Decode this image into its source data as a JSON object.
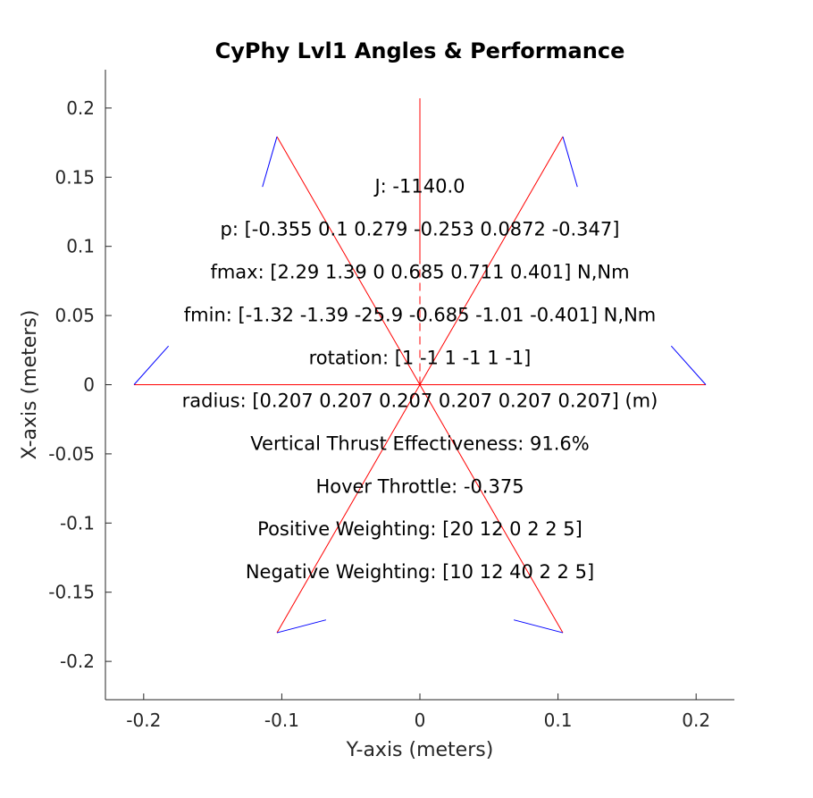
{
  "chart_data": {
    "type": "line",
    "title": "CyPhy Lvl1 Angles & Performance",
    "xlabel": "Y-axis (meters)",
    "ylabel": "X-axis (meters)",
    "xlim": [
      -0.2277,
      0.2277
    ],
    "ylim": [
      -0.2277,
      0.2277
    ],
    "xticks": [
      -0.2,
      -0.1,
      0,
      0.1,
      0.2
    ],
    "yticks": [
      0.2,
      0.15,
      0.1,
      0.05,
      0,
      -0.05,
      -0.1,
      -0.15,
      -0.2
    ],
    "grid": false,
    "colors": {
      "arms": "#ff0000",
      "thrust": "#0000ff",
      "axis": "#262626",
      "text": "#000000"
    },
    "arms": [
      {
        "from": [
          0,
          0
        ],
        "to": [
          0.207,
          0
        ]
      },
      {
        "from": [
          0,
          0
        ],
        "to": [
          0.1035,
          -0.1793
        ]
      },
      {
        "from": [
          0,
          0
        ],
        "to": [
          -0.1035,
          -0.1793
        ]
      },
      {
        "from": [
          0,
          0
        ],
        "to": [
          -0.207,
          0
        ]
      },
      {
        "from": [
          0,
          0
        ],
        "to": [
          -0.1035,
          0.1793
        ]
      },
      {
        "from": [
          0,
          0
        ],
        "to": [
          0.1035,
          0.1793
        ]
      }
    ],
    "vertical_line": {
      "x": 0,
      "solid_from": 0.09,
      "solid_to": 0.207,
      "dashed_from": 0,
      "dashed_to": 0.09
    },
    "thrust_vectors": [
      {
        "from": [
          0.207,
          0
        ],
        "to": [
          0.182,
          0.028
        ]
      },
      {
        "from": [
          0.1035,
          -0.1793
        ],
        "to": [
          0.068,
          -0.17
        ]
      },
      {
        "from": [
          -0.1035,
          -0.1793
        ],
        "to": [
          -0.068,
          -0.17
        ]
      },
      {
        "from": [
          -0.207,
          0
        ],
        "to": [
          -0.182,
          0.028
        ]
      },
      {
        "from": [
          -0.1035,
          0.1793
        ],
        "to": [
          -0.114,
          0.143
        ]
      },
      {
        "from": [
          0.1035,
          0.1793
        ],
        "to": [
          0.114,
          0.143
        ]
      }
    ],
    "annotations": [
      {
        "text": "J: -1140.0",
        "y": 0.139
      },
      {
        "text": "p: [-0.355 0.1 0.279 -0.253 0.0872 -0.347]",
        "y": 0.108
      },
      {
        "text": "fmax: [2.29 1.39 0 0.685 0.711 0.401] N,Nm",
        "y": 0.077
      },
      {
        "text": "fmin: [-1.32 -1.39 -25.9 -0.685 -1.01 -0.401] N,Nm",
        "y": 0.046
      },
      {
        "text": "rotation: [1 -1 1 -1 1 -1]",
        "y": 0.015
      },
      {
        "text": "radius: [0.207 0.207 0.207 0.207 0.207 0.207] (m)",
        "y": -0.016
      },
      {
        "text": "Vertical Thrust Effectiveness: 91.6%",
        "y": -0.047
      },
      {
        "text": "Hover Throttle: -0.375",
        "y": -0.078
      },
      {
        "text": "Positive Weighting: [20 12 0 2 2 5]",
        "y": -0.109
      },
      {
        "text": "Negative Weighting: [10 12 40 2 2 5]",
        "y": -0.14
      }
    ]
  }
}
